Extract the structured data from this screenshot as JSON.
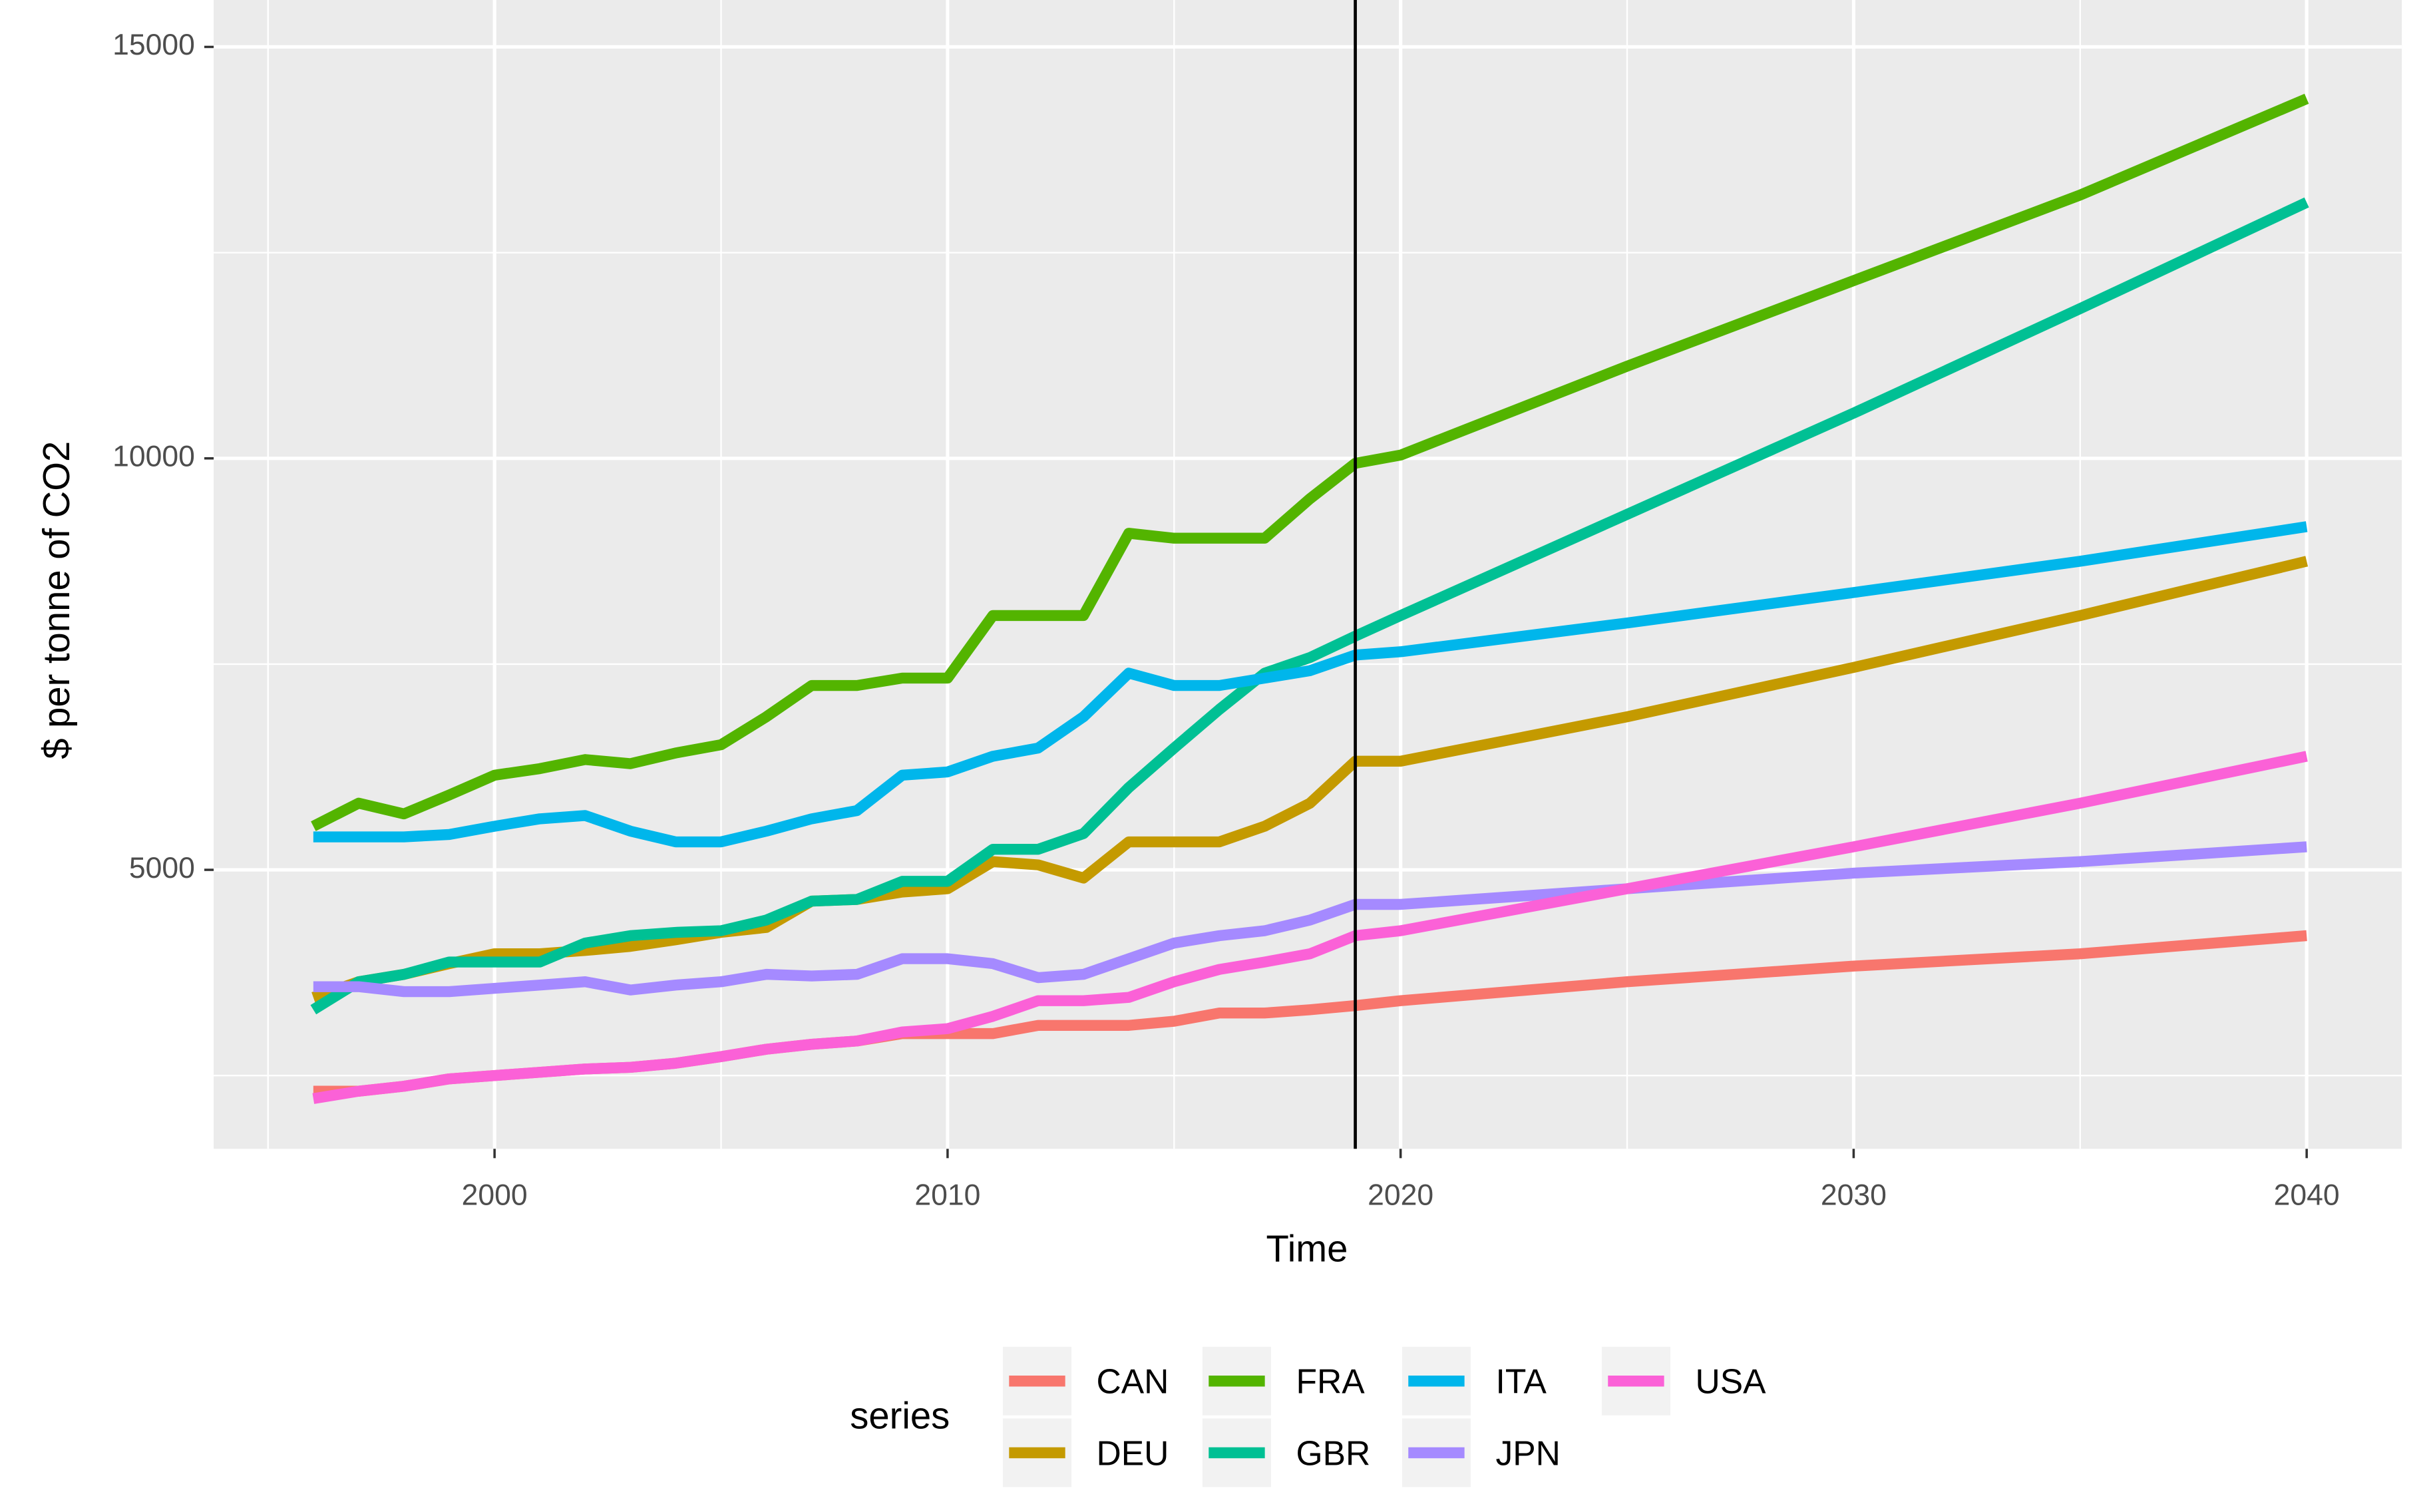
{
  "chart_data": {
    "type": "line",
    "x_label": "Time",
    "y_label": "$ per tonne of CO2",
    "x": [
      1996,
      1997,
      1998,
      1999,
      2000,
      2001,
      2002,
      2003,
      2004,
      2005,
      2006,
      2007,
      2008,
      2009,
      2010,
      2011,
      2012,
      2013,
      2014,
      2015,
      2016,
      2017,
      2018,
      2019,
      2020,
      2025,
      2030,
      2035,
      2040
    ],
    "series": [
      {
        "name": "CAN",
        "color": "#F8766D",
        "values": [
          2310,
          2310,
          2370,
          2460,
          2500,
          2540,
          2580,
          2600,
          2650,
          2730,
          2820,
          2880,
          2920,
          3010,
          3010,
          3010,
          3110,
          3110,
          3110,
          3160,
          3260,
          3260,
          3300,
          3350,
          3410,
          3640,
          3830,
          3980,
          4200
        ]
      },
      {
        "name": "DEU",
        "color": "#C49A00",
        "values": [
          3450,
          3640,
          3730,
          3860,
          3980,
          3980,
          4020,
          4070,
          4150,
          4240,
          4300,
          4620,
          4640,
          4730,
          4770,
          5100,
          5060,
          4900,
          5340,
          5340,
          5340,
          5530,
          5810,
          6320,
          6320,
          6860,
          7460,
          8090,
          8750
        ]
      },
      {
        "name": "FRA",
        "color": "#53B400",
        "values": [
          5530,
          5810,
          5680,
          5910,
          6150,
          6230,
          6340,
          6290,
          6420,
          6520,
          6860,
          7240,
          7240,
          7330,
          7330,
          8090,
          8090,
          8090,
          9090,
          9030,
          9030,
          9030,
          9510,
          9940,
          10040,
          11120,
          12160,
          13200,
          14370
        ]
      },
      {
        "name": "GBR",
        "color": "#00C094",
        "values": [
          3300,
          3640,
          3730,
          3880,
          3880,
          3880,
          4110,
          4200,
          4240,
          4260,
          4390,
          4620,
          4640,
          4860,
          4860,
          5250,
          5250,
          5440,
          6000,
          6480,
          6950,
          7390,
          7580,
          7840,
          8090,
          9320,
          10550,
          11820,
          13110
        ]
      },
      {
        "name": "ITA",
        "color": "#00B6EB",
        "values": [
          5400,
          5400,
          5400,
          5430,
          5530,
          5620,
          5660,
          5470,
          5340,
          5340,
          5470,
          5620,
          5720,
          6150,
          6190,
          6380,
          6480,
          6860,
          7390,
          7240,
          7240,
          7330,
          7420,
          7610,
          7650,
          8000,
          8370,
          8750,
          9170
        ]
      },
      {
        "name": "JPN",
        "color": "#A58AFF",
        "values": [
          3580,
          3580,
          3520,
          3520,
          3560,
          3600,
          3640,
          3540,
          3600,
          3640,
          3730,
          3710,
          3730,
          3920,
          3920,
          3860,
          3690,
          3730,
          3920,
          4110,
          4200,
          4260,
          4390,
          4580,
          4580,
          4770,
          4960,
          5100,
          5280
        ]
      },
      {
        "name": "USA",
        "color": "#FB61D7",
        "values": [
          2220,
          2310,
          2370,
          2460,
          2500,
          2540,
          2580,
          2600,
          2650,
          2730,
          2820,
          2880,
          2920,
          3030,
          3070,
          3220,
          3410,
          3410,
          3450,
          3640,
          3790,
          3880,
          3980,
          4200,
          4260,
          4770,
          5280,
          5810,
          6380
        ]
      }
    ],
    "xlim": [
      1993.8,
      2042.1
    ],
    "xticks": [
      2000,
      2010,
      2020,
      2030,
      2040
    ],
    "ylim": [
      1610,
      15570
    ],
    "yticks": [
      5000,
      10000,
      15000
    ],
    "vline": 2019,
    "grid": true,
    "legend_title": "series",
    "legend": "bottom"
  }
}
